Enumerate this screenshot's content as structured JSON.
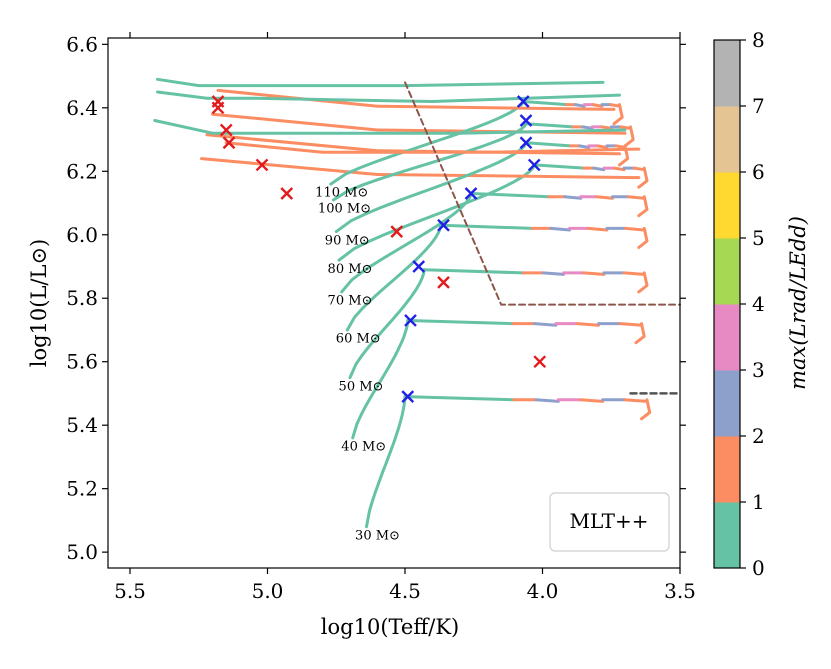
{
  "chart_data": {
    "type": "line",
    "title": "",
    "xlabel": "log10(Teff/K)",
    "ylabel": "log10(L/L⊙)",
    "xlim": [
      5.58,
      3.5
    ],
    "ylim": [
      4.95,
      6.62
    ],
    "xticks": [
      5.5,
      5.0,
      4.5,
      4.0,
      3.5
    ],
    "xtick_labels": [
      "5.5",
      "5.0",
      "4.5",
      "4.0",
      "3.5"
    ],
    "yticks": [
      5.0,
      5.2,
      5.4,
      5.6,
      5.8,
      6.0,
      6.2,
      6.4,
      6.6
    ],
    "ytick_labels": [
      "5.0",
      "5.2",
      "5.4",
      "5.6",
      "5.8",
      "6.0",
      "6.2",
      "6.4",
      "6.6"
    ],
    "legend_text": "MLT++",
    "legend_position": "lower-right",
    "colorbar": {
      "label": "max(Lrad/LEdd)",
      "range": [
        0,
        8
      ],
      "ticks": [
        "0",
        "1",
        "2",
        "3",
        "4",
        "5",
        "6",
        "7",
        "8"
      ],
      "colors": [
        "#66c2a5",
        "#fc8d62",
        "#8da0cb",
        "#e78ac3",
        "#a6d854",
        "#ffd92f",
        "#e5c494",
        "#b3b3b3"
      ]
    },
    "tracks": [
      {
        "mass": "30 M⊙",
        "label_at": [
          4.6,
          5.04
        ],
        "start": [
          4.64,
          5.08
        ],
        "turn": [
          4.5,
          5.49
        ],
        "branch_end": [
          3.62,
          5.5
        ],
        "blue_x": [
          4.49,
          5.49
        ],
        "red_x": [
          4.01,
          5.6
        ],
        "bumps": [
          [
            4.2,
            5.57,
            2
          ]
        ]
      },
      {
        "mass": "40 M⊙",
        "label_at": [
          4.65,
          5.32
        ],
        "start": [
          4.69,
          5.36
        ],
        "turn": [
          4.49,
          5.73
        ],
        "branch_end": [
          3.64,
          5.72
        ],
        "blue_x": [
          4.48,
          5.73
        ],
        "red_x": null,
        "bumps": []
      },
      {
        "mass": "50 M⊙",
        "label_at": [
          4.66,
          5.51
        ],
        "start": [
          4.7,
          5.55
        ],
        "turn": [
          4.43,
          5.89
        ],
        "branch_end": [
          3.63,
          5.85
        ],
        "blue_x": [
          4.45,
          5.9
        ],
        "red_x": [
          4.36,
          5.85
        ],
        "bumps": []
      },
      {
        "mass": "60 M⊙",
        "label_at": [
          4.67,
          5.66
        ],
        "start": [
          4.71,
          5.7
        ],
        "turn": [
          4.37,
          6.03
        ],
        "branch_end": [
          3.63,
          6.0
        ],
        "blue_x": [
          4.36,
          6.03
        ],
        "red_x": [
          4.53,
          6.01
        ],
        "bumps": []
      },
      {
        "mass": "70 M⊙",
        "label_at": [
          4.7,
          5.78
        ],
        "start": [
          4.73,
          5.82
        ],
        "turn": [
          4.26,
          6.13
        ],
        "branch_end": [
          3.63,
          6.12
        ],
        "blue_x": [
          4.26,
          6.13
        ],
        "red_x": null,
        "bumps": []
      },
      {
        "mass": "80 M⊙",
        "label_at": [
          4.7,
          5.88
        ],
        "start": [
          4.74,
          5.92
        ],
        "turn": [
          4.03,
          6.22
        ],
        "branch_end": [
          3.63,
          6.14
        ],
        "blue_x": [
          4.03,
          6.22
        ],
        "red_x": [
          5.02,
          6.22
        ],
        "bumps": []
      },
      {
        "mass": "90 M⊙",
        "label_at": [
          4.71,
          5.97
        ],
        "start": [
          4.75,
          6.01
        ],
        "turn": [
          4.06,
          6.29
        ],
        "branch_end": [
          3.7,
          6.27
        ],
        "blue_x": [
          4.06,
          6.29
        ],
        "red_x": [
          5.14,
          6.29
        ],
        "bumps": []
      },
      {
        "mass": "100 M⊙",
        "label_at": [
          4.72,
          6.07
        ],
        "start": [
          4.76,
          6.11
        ],
        "turn": [
          4.06,
          6.35
        ],
        "branch_end": [
          3.68,
          6.34
        ],
        "blue_x": [
          4.06,
          6.36
        ],
        "red_x": [
          5.15,
          6.33
        ],
        "bumps": []
      },
      {
        "mass": "110 M⊙",
        "label_at": [
          4.73,
          6.12
        ],
        "start": [
          4.77,
          6.16
        ],
        "turn": [
          4.07,
          6.42
        ],
        "branch_end": [
          3.72,
          6.42
        ],
        "blue_x": [
          4.07,
          6.42
        ],
        "red_x": [
          5.18,
          6.42
        ],
        "bumps": []
      }
    ],
    "extra_red_markers": [
      [
        4.93,
        6.13
      ],
      [
        5.18,
        6.4
      ]
    ],
    "dashed_boundary": [
      [
        4.5,
        6.48
      ],
      [
        4.15,
        5.78
      ],
      [
        3.5,
        5.78
      ]
    ],
    "dashed_stub": [
      [
        3.68,
        5.5
      ],
      [
        3.5,
        5.5
      ]
    ]
  }
}
